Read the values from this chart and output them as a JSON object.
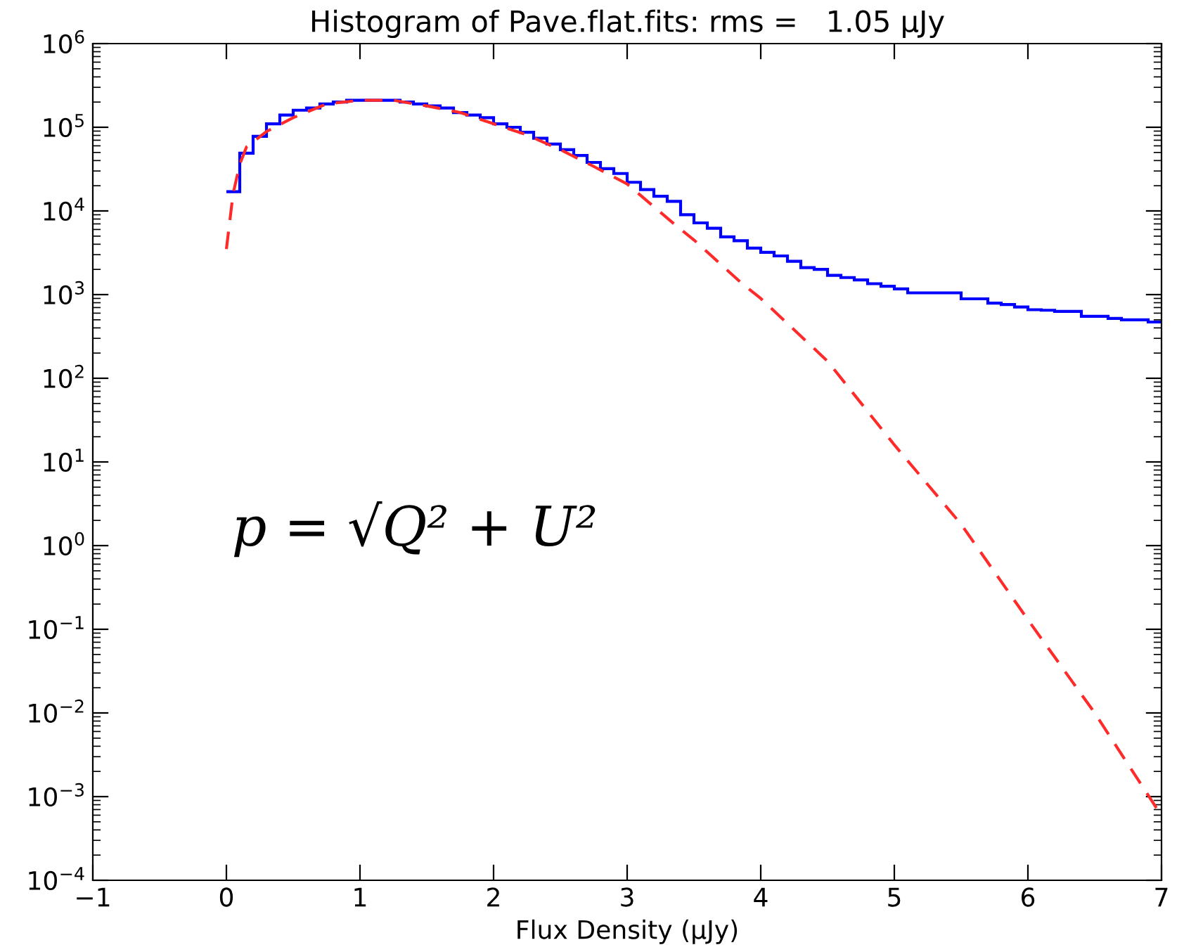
{
  "chart_data": {
    "type": "histogram",
    "title": "Histogram of Pave.flat.fits: rms =   1.05 μJy",
    "xlabel": "Flux Density (μJy)",
    "annotations": [
      "p = √Q² + U²"
    ],
    "log": "y",
    "xlim": [
      -1,
      7
    ],
    "xticks": [
      {
        "value": -1,
        "label": "−1"
      },
      0,
      1,
      2,
      3,
      4,
      5,
      6,
      7
    ],
    "ylim": [
      0.0001,
      1000000
    ],
    "yticks": [
      {
        "value": 0.0001,
        "label": "10$^{−4}$"
      },
      {
        "value": 0.001,
        "label": "10$^{−3}$"
      },
      {
        "value": 0.01,
        "label": "10$^{−2}$"
      },
      {
        "value": 0.1,
        "label": "10$^{−1}$"
      },
      {
        "value": 1,
        "label": "10$^{0}$"
      },
      {
        "value": 10,
        "label": "10$^{1}$"
      },
      {
        "value": 100,
        "label": "10$^{2}$"
      },
      {
        "value": 1000,
        "label": "10$^{3}$"
      },
      {
        "value": 10000,
        "label": "10$^{4}$"
      },
      {
        "value": 100000,
        "label": "10$^{5}$"
      },
      {
        "value": 1000000,
        "label": "10$^{6}$"
      }
    ],
    "grid": false,
    "series": [
      {
        "color": "#0000ff",
        "line_style": "solid",
        "bins": [
          0,
          0.1,
          0.2,
          0.3,
          0.4,
          0.5,
          0.6,
          0.7,
          0.8,
          0.9,
          1.0,
          1.1,
          1.2,
          1.3,
          1.4,
          1.5,
          1.6,
          1.7,
          1.8,
          1.9,
          2.0,
          2.1,
          2.2,
          2.3,
          2.4,
          2.5,
          2.6,
          2.7,
          2.8,
          2.9,
          3.0,
          3.1,
          3.2,
          3.3,
          3.4,
          3.5,
          3.6,
          3.7,
          3.8,
          3.9,
          4.0,
          4.1,
          4.2,
          4.3,
          4.4,
          4.5,
          4.6,
          4.7,
          4.8,
          4.9,
          5.0,
          5.1,
          5.2,
          5.3,
          5.4,
          5.5,
          5.6,
          5.7,
          5.8,
          5.9,
          6.0,
          6.1,
          6.2,
          6.3,
          6.4,
          6.5,
          6.6,
          6.7,
          6.8,
          6.9,
          7.0
        ],
        "values": [
          17000,
          49000,
          78000,
          110000,
          140000,
          160000,
          170000,
          190000,
          200000,
          210000,
          210000,
          210000,
          210000,
          200000,
          190000,
          180000,
          170000,
          150000,
          140000,
          130000,
          110000,
          100000,
          87000,
          74000,
          63000,
          54000,
          46000,
          38000,
          32000,
          28000,
          22000,
          18000,
          15000,
          13000,
          9000,
          7200,
          6200,
          4900,
          4400,
          3600,
          3200,
          2900,
          2500,
          2100,
          2000,
          1700,
          1600,
          1500,
          1350,
          1260,
          1170,
          1050,
          1050,
          1050,
          1050,
          890,
          890,
          790,
          760,
          710,
          660,
          650,
          630,
          630,
          550,
          550,
          520,
          500,
          500,
          470
        ]
      },
      {
        "type": "line",
        "color": "#ff2a2a",
        "line_style": "dashed",
        "x": [
          0,
          0.05,
          0.1,
          0.15,
          0.3,
          0.5,
          0.75,
          1.0,
          1.25,
          1.5,
          1.75,
          2.0,
          2.25,
          2.5,
          2.75,
          3.0,
          3.36,
          3.5,
          3.85,
          4.0,
          4.5,
          5.0,
          5.5,
          6.0,
          6.5,
          7.0
        ],
        "values": [
          3500,
          16000,
          36000,
          58000,
          89000,
          130000,
          190000,
          210000,
          210000,
          180000,
          150000,
          110000,
          81000,
          54000,
          34000,
          21000,
          6800,
          4500,
          1400,
          900,
          160,
          16,
          1.8,
          0.13,
          0.01,
          0.00059
        ]
      }
    ]
  }
}
